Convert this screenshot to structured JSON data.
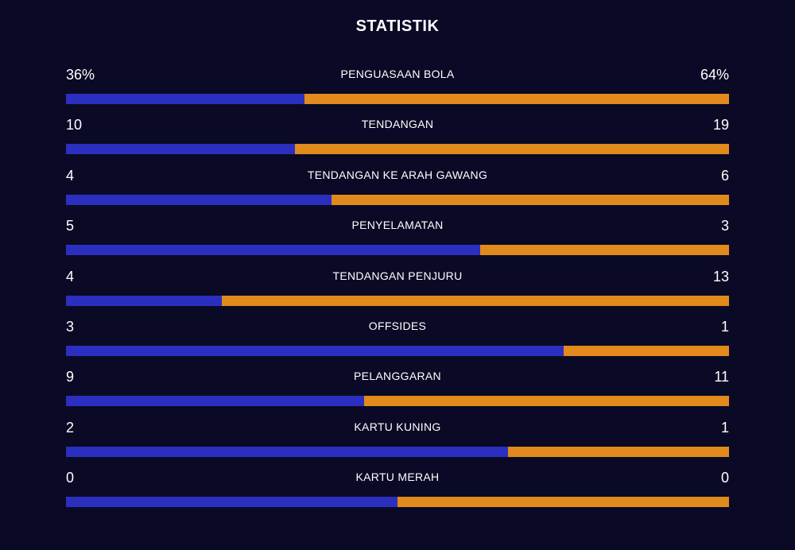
{
  "header": {
    "title": "STATISTIK"
  },
  "colors": {
    "background": "#0b0a26",
    "home_bar": "#2b2fc0",
    "away_bar": "#e28a1b",
    "text": "#ffffff"
  },
  "stats": [
    {
      "label": "PENGUASAAN BOLA",
      "home": "36%",
      "away": "64%",
      "home_share": 0.36
    },
    {
      "label": "TENDANGAN",
      "home": "10",
      "away": "19",
      "home_share": 0.345
    },
    {
      "label": "TENDANGAN KE ARAH GAWANG",
      "home": "4",
      "away": "6",
      "home_share": 0.4
    },
    {
      "label": "PENYELAMATAN",
      "home": "5",
      "away": "3",
      "home_share": 0.625
    },
    {
      "label": "TENDANGAN PENJURU",
      "home": "4",
      "away": "13",
      "home_share": 0.235
    },
    {
      "label": "OFFSIDES",
      "home": "3",
      "away": "1",
      "home_share": 0.75
    },
    {
      "label": "PELANGGARAN",
      "home": "9",
      "away": "11",
      "home_share": 0.45
    },
    {
      "label": "KARTU KUNING",
      "home": "2",
      "away": "1",
      "home_share": 0.667
    },
    {
      "label": "KARTU MERAH",
      "home": "0",
      "away": "0",
      "home_share": 0.5
    }
  ]
}
